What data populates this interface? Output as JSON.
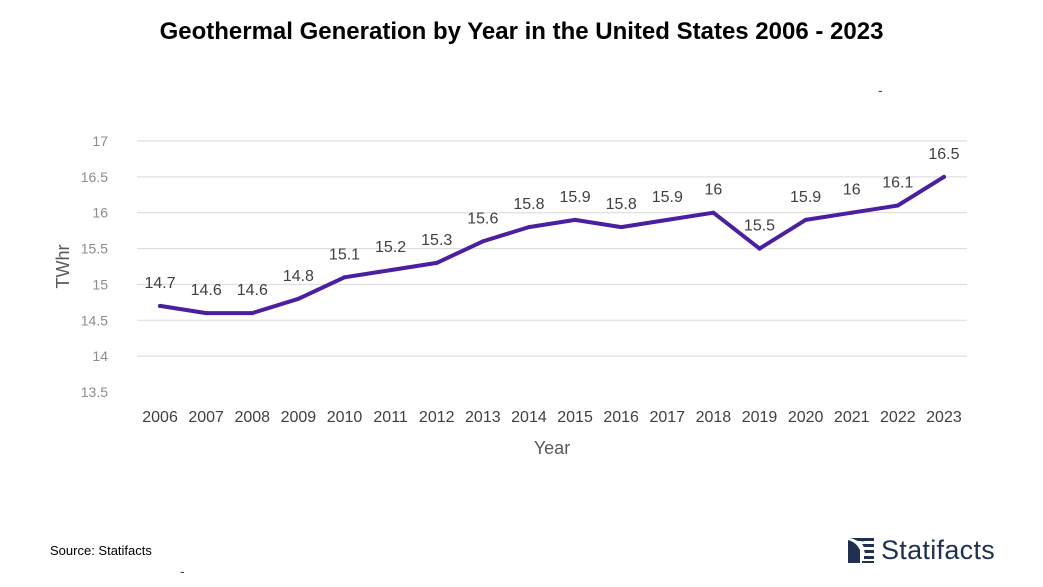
{
  "title": "Geothermal Generation by Year in the United States 2006 - 2023",
  "source": "Source: Statifacts",
  "brand": {
    "name": "Statifacts",
    "color": "#1f3050"
  },
  "stray_marks": [
    "-",
    "-"
  ],
  "chart_data": {
    "type": "line",
    "title": "Geothermal Generation by Year in the United States 2006 - 2023",
    "xlabel": "Year",
    "ylabel": "TWhr",
    "categories": [
      "2006",
      "2007",
      "2008",
      "2009",
      "2010",
      "2011",
      "2012",
      "2013",
      "2014",
      "2015",
      "2016",
      "2017",
      "2018",
      "2019",
      "2020",
      "2021",
      "2022",
      "2023"
    ],
    "series": [
      {
        "name": "Geothermal Generation",
        "color": "#4b1fa0",
        "values": [
          14.7,
          14.6,
          14.6,
          14.8,
          15.1,
          15.2,
          15.3,
          15.6,
          15.8,
          15.9,
          15.8,
          15.9,
          16,
          15.5,
          15.9,
          16,
          16.1,
          16.5
        ]
      }
    ],
    "ylim": [
      13.5,
      17
    ],
    "yticks": [
      13.5,
      14,
      14.5,
      15,
      15.5,
      16,
      16.5,
      17
    ],
    "ytick_labels": [
      "13.5",
      "14",
      "14.5",
      "15",
      "15.5",
      "16",
      "16.5",
      "17"
    ],
    "grid": true,
    "legend": "none"
  }
}
